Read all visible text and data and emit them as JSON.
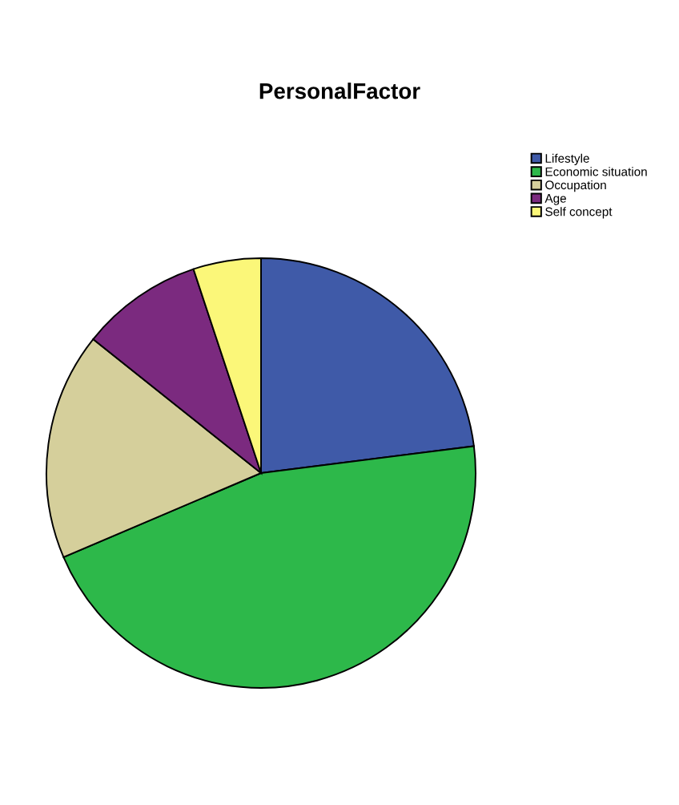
{
  "chart_data": {
    "type": "pie",
    "title": "PersonalFactor",
    "categories": [
      "Lifestyle",
      "Economic situation",
      "Occupation",
      "Age",
      "Self concept"
    ],
    "values": [
      23,
      45.6,
      17.1,
      9.2,
      5.1
    ],
    "colors": [
      "#3f5aa8",
      "#2db84a",
      "#d5cf9b",
      "#7b2a7f",
      "#fbf779"
    ],
    "legend": "top right"
  }
}
